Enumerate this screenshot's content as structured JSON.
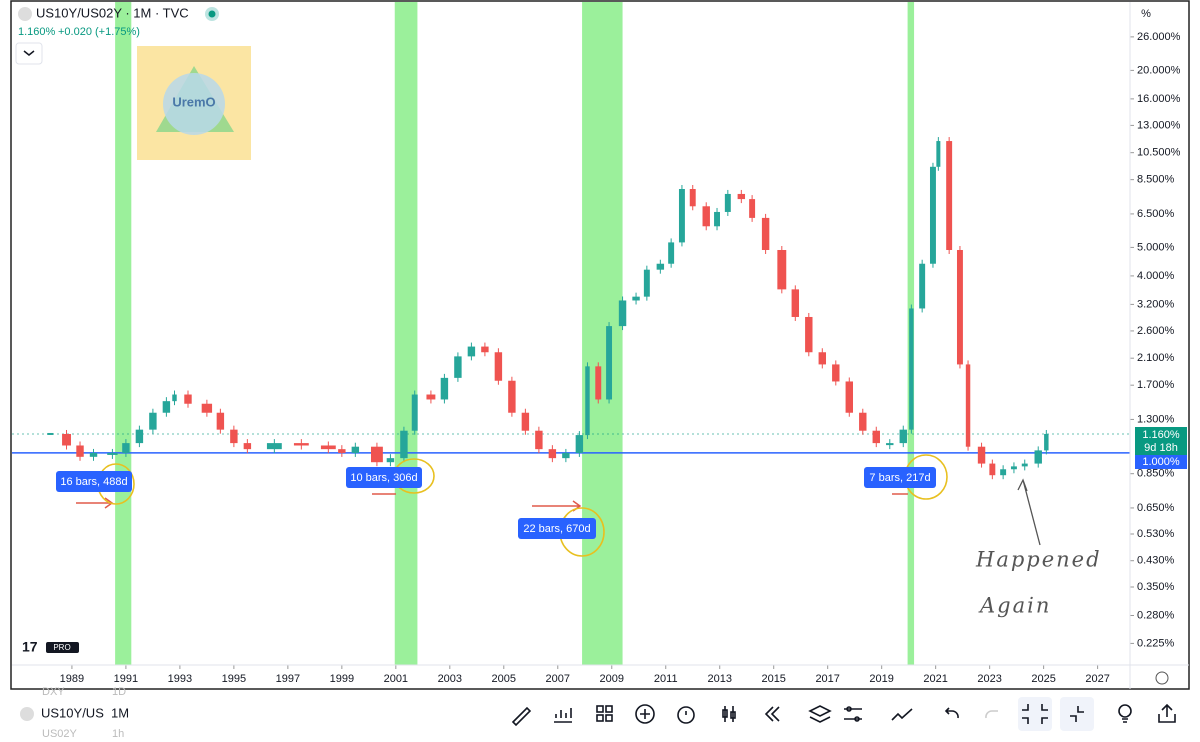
{
  "header": {
    "symbol": "US10Y/US02Y · 1M · TVC",
    "price": "1.160%",
    "change": "+0.020 (+1.75%)"
  },
  "logo": "UremO",
  "axis_unit": "%",
  "price_box": {
    "last": "1.160%",
    "countdown": "9d 18h",
    "line": "1.000%"
  },
  "measurements": [
    "16 bars, 488d",
    "10 bars, 306d",
    "22 bars, 670d",
    "7 bars, 217d"
  ],
  "note": [
    "Happened",
    "Again"
  ],
  "toolbar": {
    "symbol": "US10Y/US",
    "interval": "1M",
    "ghost": [
      "DXY",
      "1D",
      "US02Y",
      "1h"
    ]
  },
  "chart_data": {
    "type": "candlestick",
    "log_scale": true,
    "up_color": "#26a69a",
    "down_color": "#ef5350",
    "hline": {
      "value": 1.0,
      "color": "#2962ff"
    },
    "bands": {
      "color": "#90ee90",
      "ranges": [
        [
          1990.6,
          1991.2
        ],
        [
          2000.96,
          2001.8
        ],
        [
          2007.9,
          2009.4
        ],
        [
          2019.96,
          2020.2
        ]
      ]
    },
    "x": [
      1988.2,
      1988.8,
      1989.3,
      1989.8,
      1990.5,
      1991.0,
      1991.5,
      1992.0,
      1992.5,
      1992.8,
      1993.3,
      1994.0,
      1994.5,
      1995.0,
      1995.5,
      1996.5,
      1997.5,
      1998.5,
      1999.0,
      1999.5,
      2000.3,
      2000.8,
      2001.3,
      2001.7,
      2002.3,
      2002.8,
      2003.3,
      2003.8,
      2004.3,
      2004.8,
      2005.3,
      2005.8,
      2006.3,
      2006.8,
      2007.3,
      2007.8,
      2008.1,
      2008.5,
      2008.9,
      2009.4,
      2009.9,
      2010.3,
      2010.8,
      2011.2,
      2011.6,
      2012.0,
      2012.5,
      2012.9,
      2013.3,
      2013.8,
      2014.2,
      2014.7,
      2015.3,
      2015.8,
      2016.3,
      2016.8,
      2017.3,
      2017.8,
      2018.3,
      2018.8,
      2019.3,
      2019.8,
      2020.1,
      2020.5,
      2020.9,
      2021.1,
      2021.5,
      2021.9,
      2022.2,
      2022.7,
      2023.1,
      2023.5,
      2023.9,
      2024.3,
      2024.8,
      2025.1
    ],
    "values": [
      1.16,
      1.06,
      0.97,
      1.0,
      1.0,
      1.08,
      1.2,
      1.37,
      1.5,
      1.58,
      1.47,
      1.37,
      1.2,
      1.08,
      1.03,
      1.08,
      1.06,
      1.03,
      1.0,
      1.05,
      0.93,
      0.96,
      1.19,
      1.58,
      1.52,
      1.8,
      2.13,
      2.3,
      2.2,
      1.76,
      1.37,
      1.19,
      1.03,
      0.96,
      1.0,
      1.15,
      1.97,
      1.52,
      2.7,
      3.3,
      3.4,
      4.2,
      4.4,
      5.2,
      7.9,
      6.9,
      5.9,
      6.6,
      7.6,
      7.3,
      6.3,
      4.9,
      3.6,
      2.9,
      2.2,
      2.0,
      1.75,
      1.37,
      1.19,
      1.08,
      1.08,
      1.2,
      3.1,
      4.4,
      9.4,
      11.5,
      4.9,
      2.0,
      1.05,
      0.92,
      0.84,
      0.88,
      0.9,
      0.92,
      1.02,
      1.16
    ],
    "xlim": [
      1986.78,
      2028.2
    ],
    "xticks": [
      1989,
      1991,
      1993,
      1995,
      1997,
      1999,
      2001,
      2003,
      2005,
      2007,
      2009,
      2011,
      2013,
      2015,
      2017,
      2019,
      2021,
      2023,
      2025,
      2027
    ],
    "ylim": [
      0.19,
      32.6
    ],
    "yticks": [
      {
        "value": 0.225,
        "label": "0.225%"
      },
      {
        "value": 0.28,
        "label": "0.280%"
      },
      {
        "value": 0.35,
        "label": "0.350%"
      },
      {
        "value": 0.43,
        "label": "0.430%"
      },
      {
        "value": 0.53,
        "label": "0.530%"
      },
      {
        "value": 0.65,
        "label": "0.650%"
      },
      {
        "value": 0.85,
        "label": "0.850%"
      },
      {
        "value": 1.3,
        "label": "1.300%"
      },
      {
        "value": 1.7,
        "label": "1.700%"
      },
      {
        "value": 2.1,
        "label": "2.100%"
      },
      {
        "value": 2.6,
        "label": "2.600%"
      },
      {
        "value": 3.2,
        "label": "3.200%"
      },
      {
        "value": 4.0,
        "label": "4.000%"
      },
      {
        "value": 5.0,
        "label": "5.000%"
      },
      {
        "value": 6.5,
        "label": "6.500%"
      },
      {
        "value": 8.5,
        "label": "8.500%"
      },
      {
        "value": 10.5,
        "label": "10.500%"
      },
      {
        "value": 13,
        "label": "13.000%"
      },
      {
        "value": 16,
        "label": "16.000%"
      },
      {
        "value": 20,
        "label": "20.000%"
      },
      {
        "value": 26,
        "label": "26.000%"
      }
    ]
  }
}
